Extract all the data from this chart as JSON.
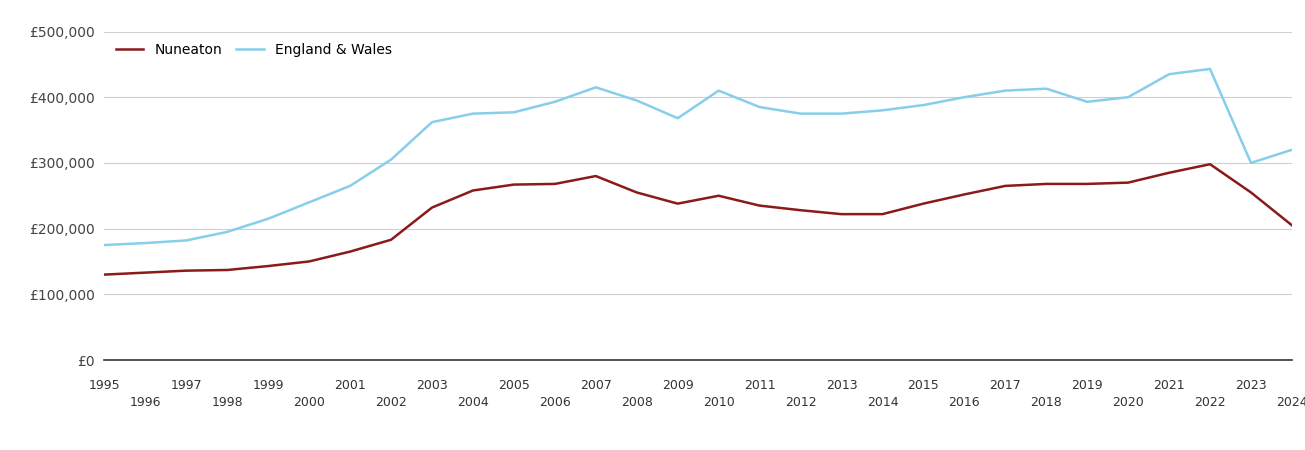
{
  "legend_labels": [
    "Nuneaton",
    "England & Wales"
  ],
  "nuneaton_color": "#8B1A1A",
  "ew_color": "#87CEEB",
  "background_color": "#ffffff",
  "grid_color": "#d0d0d0",
  "ylim": [
    0,
    500000
  ],
  "yticks": [
    0,
    100000,
    200000,
    300000,
    400000,
    500000
  ],
  "ytick_labels": [
    "£0",
    "£100,000",
    "£200,000",
    "£300,000",
    "£400,000",
    "£500,000"
  ],
  "nuneaton_data": {
    "years": [
      1995,
      1996,
      1997,
      1998,
      1999,
      2000,
      2001,
      2002,
      2003,
      2004,
      2005,
      2006,
      2007,
      2008,
      2009,
      2010,
      2011,
      2012,
      2013,
      2014,
      2015,
      2016,
      2017,
      2018,
      2019,
      2020,
      2021,
      2022,
      2023,
      2024
    ],
    "values": [
      130000,
      133000,
      136000,
      137000,
      143000,
      150000,
      165000,
      183000,
      232000,
      258000,
      267000,
      268000,
      280000,
      255000,
      238000,
      250000,
      235000,
      228000,
      222000,
      222000,
      238000,
      252000,
      265000,
      268000,
      268000,
      270000,
      285000,
      298000,
      255000,
      205000
    ]
  },
  "ew_data": {
    "years": [
      1995,
      1996,
      1997,
      1998,
      1999,
      2000,
      2001,
      2002,
      2003,
      2004,
      2005,
      2006,
      2007,
      2008,
      2009,
      2010,
      2011,
      2012,
      2013,
      2014,
      2015,
      2016,
      2017,
      2018,
      2019,
      2020,
      2021,
      2022,
      2023,
      2024
    ],
    "values": [
      175000,
      178000,
      182000,
      195000,
      215000,
      240000,
      265000,
      305000,
      362000,
      375000,
      377000,
      393000,
      415000,
      395000,
      368000,
      410000,
      385000,
      375000,
      375000,
      380000,
      388000,
      400000,
      410000,
      413000,
      393000,
      400000,
      435000,
      443000,
      300000,
      320000
    ]
  },
  "odd_years": [
    1995,
    1997,
    1999,
    2001,
    2003,
    2005,
    2007,
    2009,
    2011,
    2013,
    2015,
    2017,
    2019,
    2021,
    2023
  ],
  "even_years": [
    1996,
    1998,
    2000,
    2002,
    2004,
    2006,
    2008,
    2010,
    2012,
    2014,
    2016,
    2018,
    2020,
    2022,
    2024
  ],
  "line_width": 1.8,
  "xlim": [
    1995,
    2024
  ]
}
